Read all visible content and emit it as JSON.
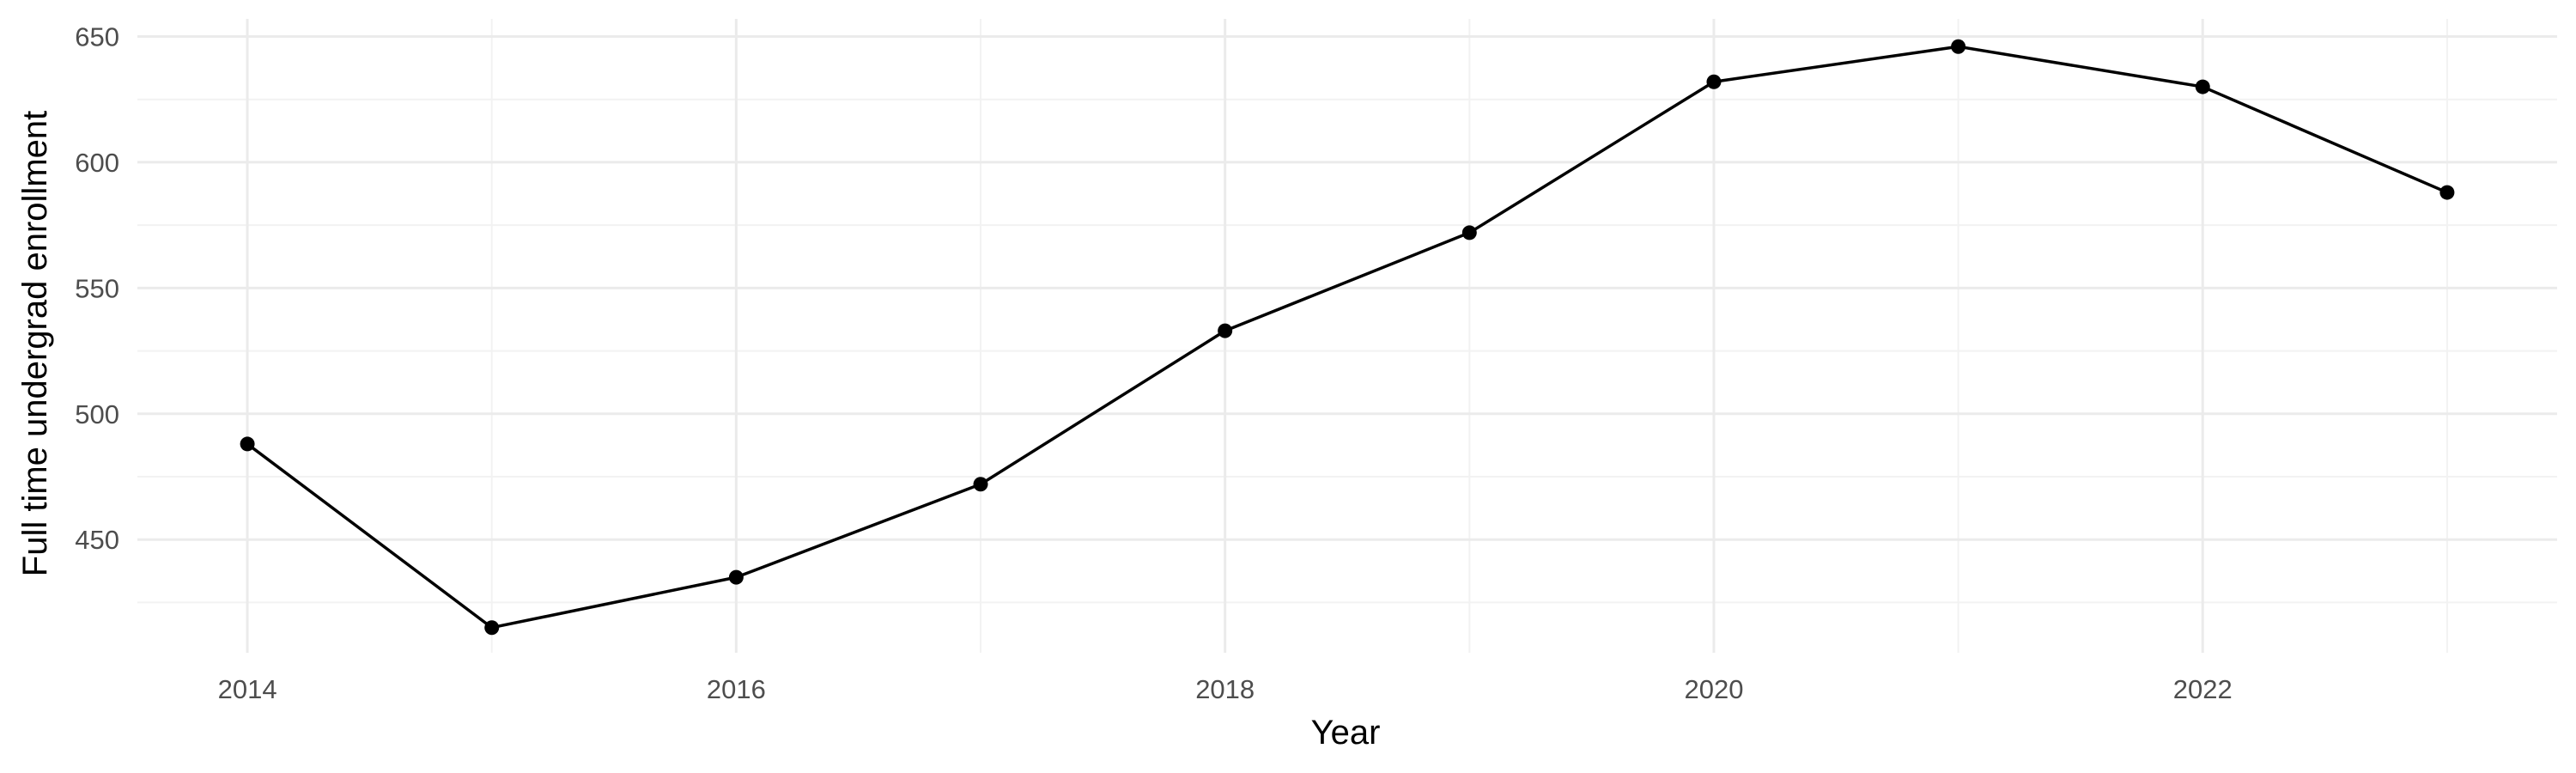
{
  "chart_data": {
    "type": "line",
    "title": "",
    "xlabel": "Year",
    "ylabel": "Full time undergrad enrollment",
    "x": [
      2014,
      2015,
      2016,
      2017,
      2018,
      2019,
      2020,
      2021,
      2022,
      2023
    ],
    "series": [
      {
        "values": [
          488,
          415,
          435,
          472,
          533,
          572,
          632,
          646,
          630,
          588
        ]
      }
    ],
    "xlim": [
      2013.55,
      2023.45
    ],
    "ylim": [
      405,
      657
    ],
    "x_ticks": [
      2014,
      2016,
      2018,
      2020,
      2022
    ],
    "x_tick_labels": [
      "2014",
      "2016",
      "2018",
      "2020",
      "2022"
    ],
    "y_ticks": [
      450,
      500,
      550,
      600,
      650
    ],
    "y_tick_labels": [
      "450",
      "500",
      "550",
      "600",
      "650"
    ],
    "grid": true,
    "legend": "none",
    "colors": {
      "line": "#000000",
      "point": "#000000",
      "grid_major": "#ebebeb",
      "grid_minor": "#f2f2f2",
      "tick_text": "#4d4d4d",
      "background": "#ffffff"
    }
  }
}
